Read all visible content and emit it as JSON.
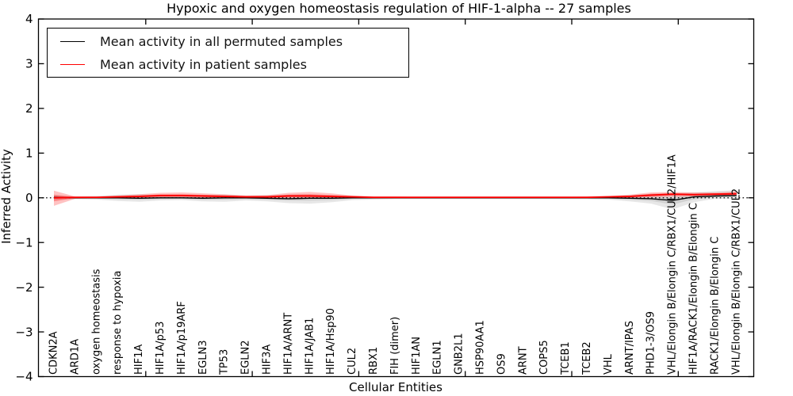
{
  "chart_data": {
    "type": "line",
    "title": "Hypoxic and oxygen homeostasis regulation of HIF-1-alpha -- 27 samples",
    "xlabel": "Cellular Entities",
    "ylabel": "Inferred Activity",
    "ylim": [
      -4,
      4
    ],
    "yticks": [
      -4,
      -3,
      -2,
      -1,
      0,
      1,
      2,
      3,
      4
    ],
    "grid": false,
    "legend_position": "upper left",
    "zero_reference_line": 0,
    "categories": [
      "CDKN2A",
      "ARD1A",
      "oxygen homeostasis",
      "response to hypoxia",
      "HIF1A",
      "HIF1A/p53",
      "HIF1A/p19ARF",
      "EGLN3",
      "TP53",
      "EGLN2",
      "HIF3A",
      "HIF1A/ARNT",
      "HIF1A/JAB1",
      "HIF1A/Hsp90",
      "CUL2",
      "RBX1",
      "FIH (dimer)",
      "HIF1AN",
      "EGLN1",
      "GNB2L1",
      "HSP90AA1",
      "OS9",
      "ARNT",
      "COPS5",
      "TCEB1",
      "TCEB2",
      "VHL",
      "ARNT/IPAS",
      "PHD1-3/OS9",
      "VHL/Elongin B/Elongin C/RBX1/CUL2/HIF1A",
      "HIF1A/RACK1/Elongin B/Elongin C",
      "RACK1/Elongin B/Elongin C",
      "VHL/Elongin B/Elongin C/RBX1/CUL2"
    ],
    "series": [
      {
        "name": "Mean activity in all permuted samples",
        "color": "#000000",
        "line_width": 1.4,
        "values": [
          0.01,
          0,
          0,
          0,
          -0.01,
          0,
          0,
          -0.01,
          0,
          0,
          -0.01,
          -0.02,
          -0.01,
          -0.01,
          0,
          0,
          0,
          0,
          0,
          0,
          0,
          0,
          0,
          0,
          0,
          0,
          0,
          -0.01,
          -0.02,
          -0.06,
          0.02,
          0.04,
          0.05
        ],
        "band": {
          "fill": "#999999",
          "lo": [
            -0.05,
            -0.03,
            -0.04,
            -0.07,
            -0.09,
            -0.06,
            -0.05,
            -0.08,
            -0.09,
            -0.06,
            -0.08,
            -0.12,
            -0.13,
            -0.1,
            -0.05,
            -0.04,
            -0.03,
            -0.03,
            -0.03,
            -0.03,
            -0.03,
            -0.03,
            -0.03,
            -0.03,
            -0.03,
            -0.03,
            -0.04,
            -0.08,
            -0.13,
            -0.26,
            -0.1,
            -0.02,
            -0.03
          ],
          "hi": [
            0.06,
            0.03,
            0.04,
            0.07,
            0.08,
            0.06,
            0.05,
            0.06,
            0.07,
            0.05,
            0.06,
            0.07,
            0.07,
            0.06,
            0.04,
            0.03,
            0.03,
            0.03,
            0.03,
            0.03,
            0.03,
            0.03,
            0.03,
            0.03,
            0.03,
            0.03,
            0.04,
            0.06,
            0.09,
            0.1,
            0.12,
            0.15,
            0.17
          ]
        }
      },
      {
        "name": "Mean activity in patient samples",
        "color": "#ff0000",
        "line_width": 1.9,
        "values": [
          0,
          0.01,
          0.01,
          0.02,
          0.03,
          0.05,
          0.05,
          0.04,
          0.03,
          0.02,
          0.02,
          0.04,
          0.04,
          0.03,
          0.02,
          0.01,
          0.01,
          0.01,
          0.01,
          0.01,
          0.01,
          0.01,
          0.01,
          0.01,
          0.01,
          0.01,
          0.02,
          0.03,
          0.06,
          0.08,
          0.07,
          0.08,
          0.09
        ],
        "band": {
          "fill": "#ff0000",
          "lo": [
            -0.18,
            -0.02,
            -0.01,
            0,
            0,
            0,
            0,
            0,
            -0.01,
            -0.01,
            -0.01,
            0,
            0,
            0,
            0,
            0,
            0,
            0,
            0,
            0,
            0,
            0,
            0,
            0,
            0,
            0,
            0,
            0,
            0.01,
            0.02,
            0.03,
            0.04,
            0.05
          ],
          "hi": [
            0.16,
            0.03,
            0.03,
            0.05,
            0.08,
            0.11,
            0.12,
            0.1,
            0.08,
            0.05,
            0.06,
            0.11,
            0.13,
            0.1,
            0.05,
            0.03,
            0.03,
            0.02,
            0.02,
            0.02,
            0.02,
            0.02,
            0.02,
            0.02,
            0.02,
            0.03,
            0.04,
            0.07,
            0.12,
            0.13,
            0.12,
            0.12,
            0.14
          ]
        }
      }
    ]
  }
}
